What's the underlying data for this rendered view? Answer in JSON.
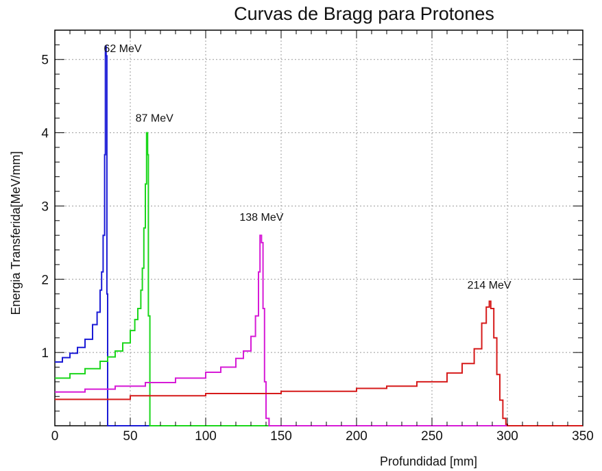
{
  "chart_data": {
    "type": "line",
    "title": "Curvas de Bragg para Protones",
    "xlabel": "Profundidad [mm]",
    "ylabel": "Energia Transferida[MeV/mm]",
    "xlim": [
      0,
      350
    ],
    "ylim": [
      0,
      5.4
    ],
    "x_ticks": [
      0,
      50,
      100,
      150,
      200,
      250,
      300,
      350
    ],
    "y_ticks": [
      1,
      2,
      3,
      4,
      5
    ],
    "grid": true,
    "series": [
      {
        "name": "62 MeV",
        "color": "#1a1ad6",
        "points": [
          [
            0,
            0.87
          ],
          [
            5,
            0.93
          ],
          [
            10,
            0.99
          ],
          [
            15,
            1.07
          ],
          [
            20,
            1.18
          ],
          [
            25,
            1.38
          ],
          [
            28,
            1.55
          ],
          [
            30,
            1.85
          ],
          [
            31,
            2.1
          ],
          [
            32,
            2.6
          ],
          [
            33,
            3.7
          ],
          [
            33.5,
            5.18
          ],
          [
            34,
            5.05
          ],
          [
            34.5,
            1.8
          ],
          [
            35,
            0.0
          ],
          [
            36,
            0.0
          ],
          [
            350,
            0.0
          ]
        ]
      },
      {
        "name": "87 MeV",
        "color": "#1ad61a",
        "points": [
          [
            0,
            0.65
          ],
          [
            10,
            0.71
          ],
          [
            20,
            0.78
          ],
          [
            30,
            0.88
          ],
          [
            35,
            0.94
          ],
          [
            40,
            1.02
          ],
          [
            45,
            1.13
          ],
          [
            50,
            1.3
          ],
          [
            53,
            1.45
          ],
          [
            55,
            1.6
          ],
          [
            57,
            1.85
          ],
          [
            58,
            2.15
          ],
          [
            59,
            2.7
          ],
          [
            60,
            3.3
          ],
          [
            60.8,
            4.0
          ],
          [
            61.5,
            3.7
          ],
          [
            62,
            1.5
          ],
          [
            63,
            0.0
          ],
          [
            64,
            0.0
          ],
          [
            350,
            0.0
          ]
        ]
      },
      {
        "name": "138 MeV",
        "color": "#d61ad6",
        "points": [
          [
            0,
            0.46
          ],
          [
            20,
            0.5
          ],
          [
            40,
            0.54
          ],
          [
            60,
            0.59
          ],
          [
            80,
            0.65
          ],
          [
            100,
            0.73
          ],
          [
            110,
            0.8
          ],
          [
            120,
            0.92
          ],
          [
            125,
            1.02
          ],
          [
            130,
            1.22
          ],
          [
            133,
            1.5
          ],
          [
            135,
            2.1
          ],
          [
            136,
            2.6
          ],
          [
            137,
            2.5
          ],
          [
            138,
            1.6
          ],
          [
            139,
            0.6
          ],
          [
            140,
            0.1
          ],
          [
            142,
            0.0
          ],
          [
            350,
            0.0
          ]
        ]
      },
      {
        "name": "214 MeV",
        "color": "#d61a1a",
        "points": [
          [
            0,
            0.36
          ],
          [
            50,
            0.41
          ],
          [
            100,
            0.44
          ],
          [
            150,
            0.47
          ],
          [
            200,
            0.51
          ],
          [
            220,
            0.54
          ],
          [
            240,
            0.6
          ],
          [
            260,
            0.72
          ],
          [
            270,
            0.85
          ],
          [
            278,
            1.05
          ],
          [
            283,
            1.4
          ],
          [
            286,
            1.62
          ],
          [
            288,
            1.7
          ],
          [
            289,
            1.6
          ],
          [
            291,
            1.2
          ],
          [
            293,
            0.7
          ],
          [
            295,
            0.35
          ],
          [
            297,
            0.1
          ],
          [
            299,
            0.02
          ],
          [
            300,
            0.0
          ],
          [
            350,
            0.0
          ]
        ]
      }
    ],
    "annotations": [
      {
        "text": "62 MeV",
        "x": 45,
        "y": 5.1
      },
      {
        "text": "87 MeV",
        "x": 66,
        "y": 4.15
      },
      {
        "text": "138 MeV",
        "x": 137,
        "y": 2.8
      },
      {
        "text": "214 MeV",
        "x": 288,
        "y": 1.87
      }
    ]
  }
}
